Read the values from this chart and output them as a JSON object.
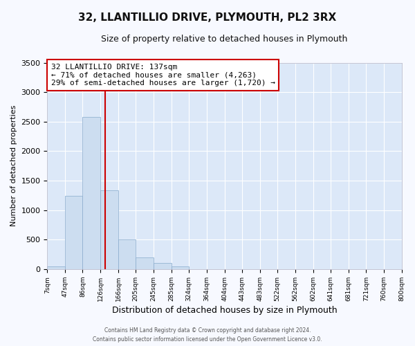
{
  "title": "32, LLANTILLIO DRIVE, PLYMOUTH, PL2 3RX",
  "subtitle": "Size of property relative to detached houses in Plymouth",
  "xlabel": "Distribution of detached houses by size in Plymouth",
  "ylabel": "Number of detached properties",
  "bar_color": "#ccddf0",
  "bar_edge_color": "#88aacc",
  "background_color": "#dce8f8",
  "grid_color": "#ffffff",
  "vline_color": "#cc0000",
  "vline_x": 137,
  "annotation_line1": "32 LLANTILLIO DRIVE: 137sqm",
  "annotation_line2": "← 71% of detached houses are smaller (4,263)",
  "annotation_line3": "29% of semi-detached houses are larger (1,720) →",
  "annotation_box_color": "#ffffff",
  "annotation_box_edge": "#cc0000",
  "footer_line1": "Contains HM Land Registry data © Crown copyright and database right 2024.",
  "footer_line2": "Contains public sector information licensed under the Open Government Licence v3.0.",
  "bin_edges": [
    7,
    47,
    86,
    126,
    166,
    205,
    245,
    285,
    324,
    364,
    404,
    443,
    483,
    522,
    562,
    602,
    641,
    681,
    721,
    760,
    800
  ],
  "bin_heights": [
    50,
    1240,
    2580,
    1340,
    500,
    195,
    110,
    50,
    3,
    3,
    3,
    3,
    3,
    0,
    0,
    0,
    0,
    0,
    0,
    0
  ],
  "ylim": [
    0,
    3500
  ],
  "xlim": [
    7,
    800
  ],
  "yticks": [
    0,
    500,
    1000,
    1500,
    2000,
    2500,
    3000,
    3500
  ],
  "xtick_labels": [
    "7sqm",
    "47sqm",
    "86sqm",
    "126sqm",
    "166sqm",
    "205sqm",
    "245sqm",
    "285sqm",
    "324sqm",
    "364sqm",
    "404sqm",
    "443sqm",
    "483sqm",
    "522sqm",
    "562sqm",
    "602sqm",
    "641sqm",
    "681sqm",
    "721sqm",
    "760sqm",
    "800sqm"
  ],
  "fig_bg": "#f7f9ff"
}
